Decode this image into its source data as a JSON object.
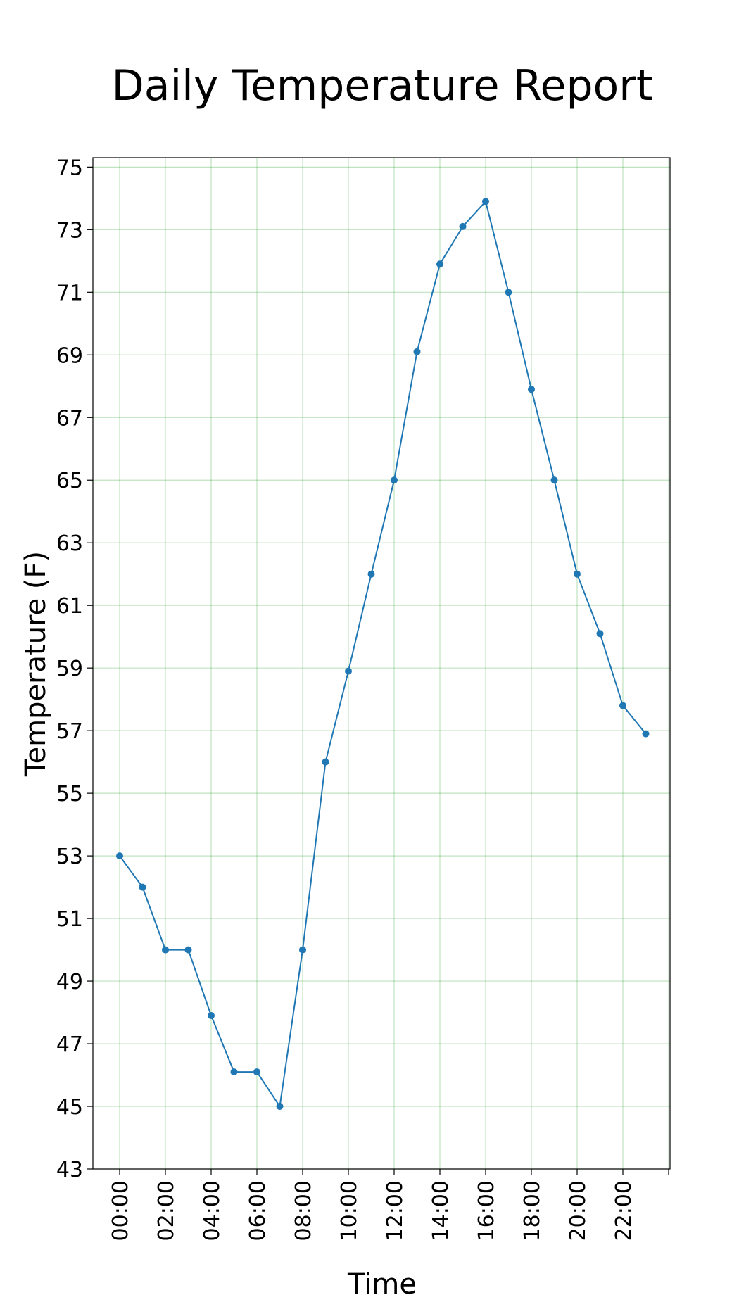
{
  "chart_data": {
    "type": "line",
    "title": "Daily Temperature Report",
    "xlabel": "Time",
    "ylabel": "Temperature (F)",
    "x": [
      "00:00",
      "01:00",
      "02:00",
      "03:00",
      "04:00",
      "05:00",
      "06:00",
      "07:00",
      "08:00",
      "09:00",
      "10:00",
      "11:00",
      "12:00",
      "13:00",
      "14:00",
      "15:00",
      "16:00",
      "17:00",
      "18:00",
      "19:00",
      "20:00",
      "21:00",
      "22:00",
      "23:00"
    ],
    "x_tick_labels": [
      "00:00",
      "02:00",
      "04:00",
      "06:00",
      "08:00",
      "10:00",
      "12:00",
      "14:00",
      "16:00",
      "18:00",
      "20:00",
      "22:00"
    ],
    "series": [
      {
        "values": [
          53,
          52,
          50,
          50,
          47.9,
          46.1,
          46.1,
          45,
          50,
          56,
          58.9,
          62,
          65,
          69.1,
          71.9,
          73.1,
          73.9,
          71,
          67.9,
          65,
          62,
          60.1,
          57.8,
          56.9
        ],
        "color": "#1f77b4"
      }
    ],
    "y_ticks": [
      43,
      45,
      47,
      49,
      51,
      53,
      55,
      57,
      59,
      61,
      63,
      65,
      67,
      69,
      71,
      73,
      75
    ],
    "ylim": [
      43,
      75.3
    ],
    "grid": true,
    "grid_color": "#2ca02c",
    "legend": false
  }
}
